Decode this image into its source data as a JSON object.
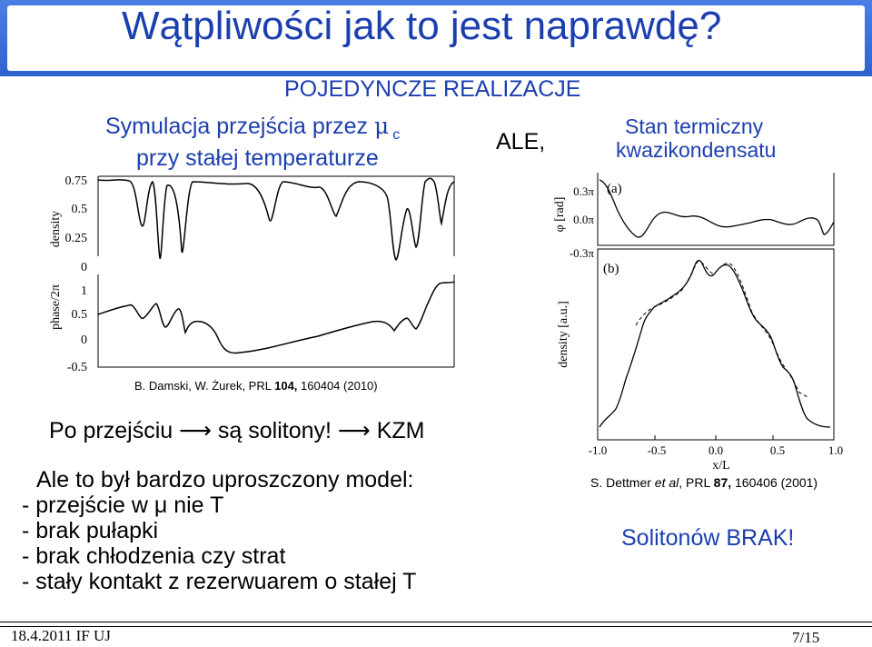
{
  "title": "Wątpliwości jak to jest naprawdę?",
  "subtitle": "POJEDYNCZE REALIZACJE",
  "left_heading": {
    "line1_prefix": "Symulacja przejścia przez ",
    "mu": "μ",
    "sub_c": "c",
    "line2": "przy stałej temperaturze"
  },
  "ale_label": "ALE,",
  "right_heading": {
    "line1": "Stan termiczny",
    "line2": "kwazikondensatu"
  },
  "left_plot": {
    "density_ylabel": "density",
    "phase_ylabel": "phase/2π",
    "density_ticks": [
      "0.75",
      "0.5",
      "0.25",
      "0"
    ],
    "phase_ticks": [
      "1",
      "0.5",
      "0",
      "-0.5"
    ]
  },
  "left_citation": {
    "authors": "B. Damski, W. Żurek, PRL ",
    "volume": "104,",
    "rest": " 160404 (2010)"
  },
  "right_plot": {
    "phi_ylabel": "φ [rad]",
    "density_ylabel": "density [a.u.]",
    "phi_ticks": [
      "0.3π",
      "0.0π",
      "-0.3π"
    ],
    "panel_a": "(a)",
    "panel_b": "(b)",
    "x_ticks": [
      "-1.0",
      "-0.5",
      "0.0",
      "0.5",
      "1.0"
    ],
    "xlabel": "x/L"
  },
  "right_citation": {
    "authors": "S. Dettmer ",
    "etal": "et al",
    "mid": ", PRL ",
    "volume": "87,",
    "rest": " 160406 (2001)"
  },
  "solitons_line": {
    "prefix": "Po przejściu ",
    "arrow": "⟶",
    "middle": " są solitony! ",
    "arrow2": "⟶",
    "suffix": " KZM"
  },
  "model_text": [
    "Ale to był bardzo uproszczony model:",
    "- przejście w μ nie T",
    "- brak pułapki",
    "- brak chłodzenia czy strat",
    "- stały kontakt z rezerwuarem o stałej T"
  ],
  "solitonow_brak": "Solitonów BRAK!",
  "footer": {
    "date_place": "18.4.2011 IF UJ",
    "page": "7/15"
  },
  "colors": {
    "title_blue": "#1c3fb0",
    "frame_blue": "#3a6fd8"
  }
}
